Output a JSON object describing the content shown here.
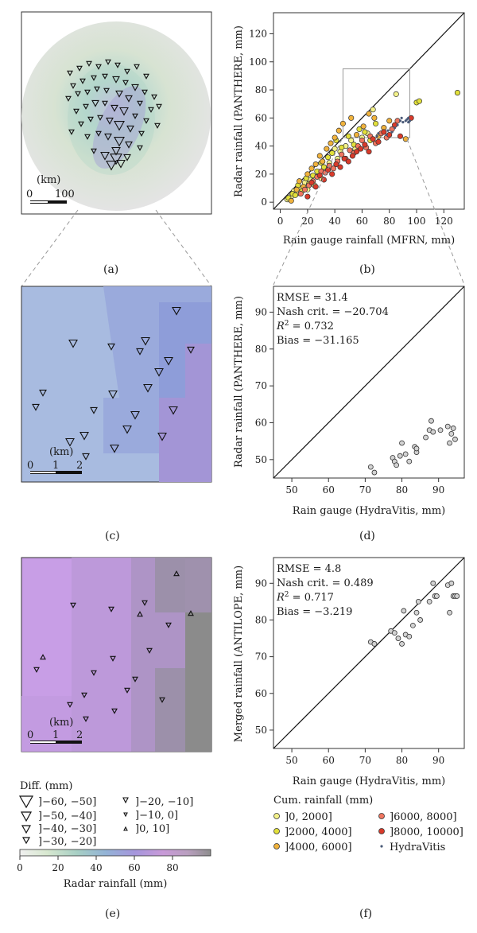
{
  "panels": {
    "a": {
      "letter": "(a)",
      "scale_unit": "(km)",
      "scale_start": "0",
      "scale_end": "100"
    },
    "b": {
      "letter": "(b)"
    },
    "c": {
      "letter": "(c)",
      "scale_unit": "(km)",
      "scale_start": "0",
      "scale_mid": "1",
      "scale_end": "2"
    },
    "d": {
      "letter": "(d)"
    },
    "e": {
      "letter": "(e)",
      "scale_unit": "(km)",
      "scale_start": "0",
      "scale_mid": "1",
      "scale_end": "2"
    },
    "f": {
      "letter": "(f)"
    }
  },
  "legend_diff": {
    "title": "Diff. (mm)",
    "items": [
      "]−60, −50]",
      "]−50, −40]",
      "]−40, −30]",
      "]−30, −20]",
      "]−20, −10]",
      "]−10, 0]",
      "]0, 10]"
    ]
  },
  "colorbar": {
    "label": "Radar rainfall (mm)",
    "ticks": [
      "0",
      "20",
      "40",
      "60",
      "80"
    ],
    "colors": [
      "#eeeeee",
      "#cde3c7",
      "#9ec9c3",
      "#8fa9d6",
      "#a38fd8",
      "#c69ad8",
      "#bfa0c8",
      "#8f8f8f"
    ]
  },
  "legend_cum": {
    "title": "Cum. rainfall (mm)",
    "items": [
      {
        "label": "]0, 2000]",
        "color": "#f4f28a"
      },
      {
        "label": "]2000, 4000]",
        "color": "#e2e03a"
      },
      {
        "label": "]4000, 6000]",
        "color": "#f0b23c"
      },
      {
        "label": "]6000, 8000]",
        "color": "#f07660"
      },
      {
        "label": "]8000, 10000]",
        "color": "#d93a2a"
      },
      {
        "label": "HydraVitis",
        "color": "#4a5a78"
      }
    ]
  },
  "chart_data": [
    {
      "panel": "b",
      "type": "scatter",
      "xlabel": "Rain gauge rainfall (MFRN, mm)",
      "ylabel": "Radar rainfall (PANTHERE, mm)",
      "xlim": [
        -5,
        135
      ],
      "ylim": [
        -5,
        135
      ],
      "xticks": [
        0,
        20,
        40,
        60,
        80,
        100,
        120
      ],
      "yticks": [
        0,
        20,
        40,
        60,
        80,
        100,
        120
      ],
      "zoom_box": {
        "x": [
          46,
          95
        ],
        "y": [
          46,
          95
        ]
      },
      "series": [
        {
          "category": 0,
          "points": [
            [
              5,
              2
            ],
            [
              8,
              4
            ],
            [
              10,
              8
            ],
            [
              12,
              6
            ],
            [
              15,
              10
            ],
            [
              18,
              14
            ],
            [
              20,
              9
            ],
            [
              22,
              16
            ],
            [
              25,
              12
            ],
            [
              28,
              20
            ],
            [
              30,
              17
            ],
            [
              33,
              24
            ],
            [
              36,
              28
            ],
            [
              40,
              38
            ],
            [
              42,
              31
            ],
            [
              44,
              36
            ],
            [
              48,
              40
            ],
            [
              52,
              44
            ],
            [
              55,
              38
            ],
            [
              60,
              46
            ],
            [
              64,
              49
            ],
            [
              68,
              66
            ],
            [
              85,
              77
            ]
          ]
        },
        {
          "category": 1,
          "points": [
            [
              6,
              3
            ],
            [
              9,
              6
            ],
            [
              11,
              5
            ],
            [
              13,
              12
            ],
            [
              16,
              8
            ],
            [
              19,
              17
            ],
            [
              21,
              13
            ],
            [
              24,
              19
            ],
            [
              27,
              22
            ],
            [
              30,
              28
            ],
            [
              32,
              25
            ],
            [
              35,
              32
            ],
            [
              38,
              35
            ],
            [
              41,
              44
            ],
            [
              45,
              39
            ],
            [
              50,
              47
            ],
            [
              54,
              41
            ],
            [
              58,
              52
            ],
            [
              62,
              50
            ],
            [
              66,
              44
            ],
            [
              70,
              56
            ],
            [
              100,
              71
            ],
            [
              102,
              72
            ],
            [
              130,
              78
            ]
          ]
        },
        {
          "category": 2,
          "points": [
            [
              8,
              1
            ],
            [
              12,
              9
            ],
            [
              14,
              15
            ],
            [
              17,
              11
            ],
            [
              20,
              20
            ],
            [
              23,
              24
            ],
            [
              26,
              27
            ],
            [
              29,
              33
            ],
            [
              31,
              29
            ],
            [
              34,
              38
            ],
            [
              37,
              42
            ],
            [
              40,
              46
            ],
            [
              43,
              51
            ],
            [
              46,
              56
            ],
            [
              52,
              60
            ],
            [
              56,
              48
            ],
            [
              61,
              54
            ],
            [
              65,
              63
            ],
            [
              69,
              60
            ],
            [
              72,
              47
            ],
            [
              76,
              53
            ],
            [
              80,
              58
            ],
            [
              92,
              45
            ]
          ]
        },
        {
          "category": 3,
          "points": [
            [
              15,
              6
            ],
            [
              18,
              9
            ],
            [
              21,
              12
            ],
            [
              24,
              15
            ],
            [
              27,
              18
            ],
            [
              30,
              22
            ],
            [
              33,
              21
            ],
            [
              36,
              26
            ],
            [
              39,
              24
            ],
            [
              42,
              29
            ],
            [
              45,
              34
            ],
            [
              48,
              31
            ],
            [
              51,
              37
            ],
            [
              54,
              35
            ],
            [
              57,
              40
            ],
            [
              60,
              44
            ],
            [
              63,
              39
            ],
            [
              66,
              47
            ],
            [
              70,
              42
            ],
            [
              74,
              49
            ],
            [
              78,
              46
            ],
            [
              82,
              52
            ],
            [
              86,
              58
            ]
          ]
        },
        {
          "category": 4,
          "points": [
            [
              20,
              4
            ],
            [
              23,
              14
            ],
            [
              26,
              11
            ],
            [
              29,
              19
            ],
            [
              32,
              16
            ],
            [
              35,
              23
            ],
            [
              38,
              20
            ],
            [
              41,
              27
            ],
            [
              44,
              25
            ],
            [
              47,
              31
            ],
            [
              50,
              29
            ],
            [
              53,
              33
            ],
            [
              56,
              36
            ],
            [
              59,
              38
            ],
            [
              62,
              41
            ],
            [
              65,
              36
            ],
            [
              68,
              45
            ],
            [
              72,
              43
            ],
            [
              76,
              50
            ],
            [
              80,
              48
            ],
            [
              84,
              55
            ],
            [
              88,
              47
            ],
            [
              96,
              60
            ]
          ]
        },
        {
          "category": 5,
          "points": [
            [
              71,
              47
            ],
            [
              72,
              49
            ],
            [
              78,
              48
            ],
            [
              79,
              51
            ],
            [
              82,
              50
            ],
            [
              84,
              53
            ],
            [
              86,
              55
            ],
            [
              88,
              58
            ],
            [
              89,
              60
            ],
            [
              90,
              57
            ],
            [
              92,
              58
            ],
            [
              93,
              59
            ],
            [
              94,
              57
            ],
            [
              94,
              60
            ],
            [
              95,
              58
            ]
          ]
        }
      ]
    },
    {
      "panel": "d",
      "type": "scatter",
      "xlabel": "Rain gauge (HydraVitis, mm)",
      "ylabel": "Radar rainfall (PANTHERE, mm)",
      "xlim": [
        45,
        97
      ],
      "ylim": [
        45,
        97
      ],
      "xticks": [
        50,
        60,
        70,
        80,
        90
      ],
      "yticks": [
        50,
        60,
        70,
        80,
        90
      ],
      "stats": [
        "RMSE = 31.4",
        "Nash crit. = −20.704",
        "R² = 0.732",
        "Bias = −31.165"
      ],
      "x": [
        71.5,
        72.5,
        77.5,
        78.0,
        78.5,
        79.5,
        80.0,
        81.0,
        82.0,
        83.5,
        84.0,
        84.0,
        86.5,
        87.5,
        88.0,
        88.5,
        90.5,
        92.5,
        93.0,
        93.5,
        94.0,
        94.5
      ],
      "y": [
        48.0,
        46.5,
        50.5,
        49.5,
        48.5,
        51.0,
        54.5,
        51.5,
        49.5,
        53.5,
        52.0,
        53.0,
        56.0,
        58.0,
        60.5,
        57.5,
        58.0,
        59.0,
        54.5,
        57.0,
        58.5,
        55.5
      ]
    },
    {
      "panel": "f",
      "type": "scatter",
      "xlabel": "Rain gauge (HydraVitis, mm)",
      "ylabel": "Merged rainfall (ANTILOPE, mm)",
      "xlim": [
        45,
        97
      ],
      "ylim": [
        45,
        97
      ],
      "xticks": [
        50,
        60,
        70,
        80,
        90
      ],
      "yticks": [
        50,
        60,
        70,
        80,
        90
      ],
      "stats": [
        "RMSE = 4.8",
        "Nash crit. = 0.489",
        "R² = 0.717",
        "Bias = −3.219"
      ],
      "x": [
        71.5,
        72.5,
        77.0,
        78.0,
        79.0,
        80.0,
        80.5,
        81.0,
        82.0,
        83.0,
        84.0,
        84.5,
        85.0,
        87.5,
        88.5,
        89.0,
        89.5,
        92.5,
        93.0,
        93.5,
        94.0,
        94.5,
        95.0
      ],
      "y": [
        74.0,
        73.5,
        77.0,
        76.5,
        75.0,
        73.5,
        82.5,
        76.0,
        75.5,
        78.5,
        82.0,
        85.0,
        80.0,
        85.0,
        90.0,
        86.5,
        86.5,
        89.5,
        82.0,
        90.0,
        86.5,
        86.5,
        86.5
      ]
    }
  ]
}
